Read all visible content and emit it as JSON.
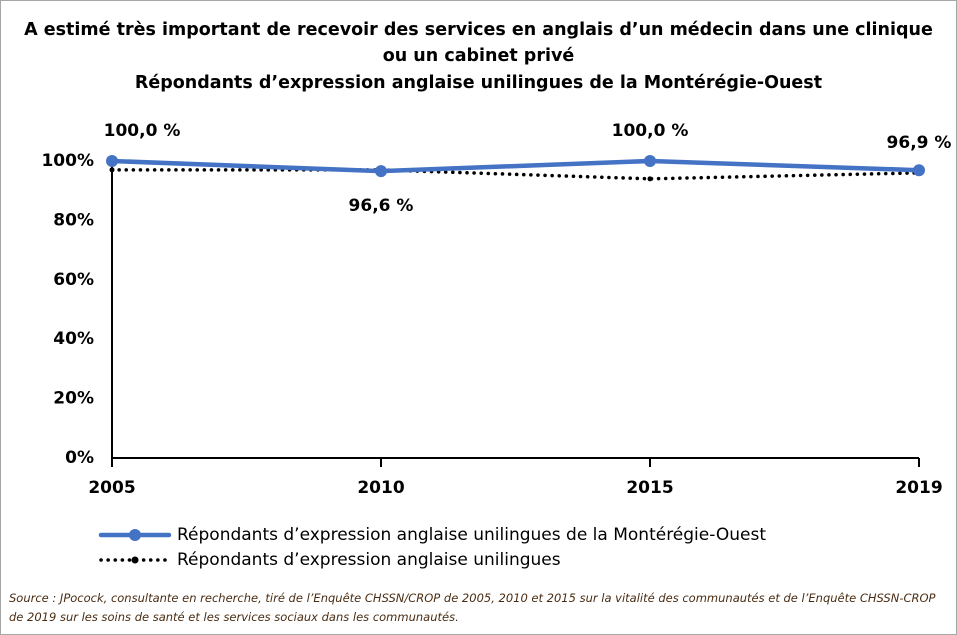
{
  "chart_data": {
    "type": "line",
    "title": "A estimé très important de recevoir des services en anglais  d’un médecin dans une clinique  ou un cabinet privé",
    "subtitle": "Répondants  d’expression anglaise  unilingues  de la Montérégie-Ouest",
    "categories": [
      "2005",
      "2010",
      "2015",
      "2019"
    ],
    "series": [
      {
        "name": "Répondants d’expression anglaise unilingues de la Montérégie-Ouest",
        "color": "#4472c4",
        "style": "solid",
        "values": [
          100.0,
          96.6,
          100.0,
          96.9
        ],
        "value_labels": [
          "100,0 %",
          "96,6 %",
          "100,0 %",
          "96,9 %"
        ]
      },
      {
        "name": "Répondants d’expression anglaise unilingues",
        "color": "#000000",
        "style": "dotted",
        "values": [
          97,
          97,
          94,
          96
        ]
      }
    ],
    "ylim": [
      0,
      100
    ],
    "yticks": [
      {
        "value": 0,
        "label": "0%"
      },
      {
        "value": 20,
        "label": "20%"
      },
      {
        "value": 40,
        "label": "40%"
      },
      {
        "value": 60,
        "label": "60%"
      },
      {
        "value": 80,
        "label": "80%"
      },
      {
        "value": 100,
        "label": "100%"
      }
    ],
    "grid": false,
    "source": "Source : JPocock, consultante en recherche, tiré de l’Enquête CHSSN/CROP de 2005, 2010 et 2015 sur la vitalité des communautés et de l’Enquête CHSSN-CROP de 2019 sur les soins de santé et les services sociaux dans les communautés."
  }
}
